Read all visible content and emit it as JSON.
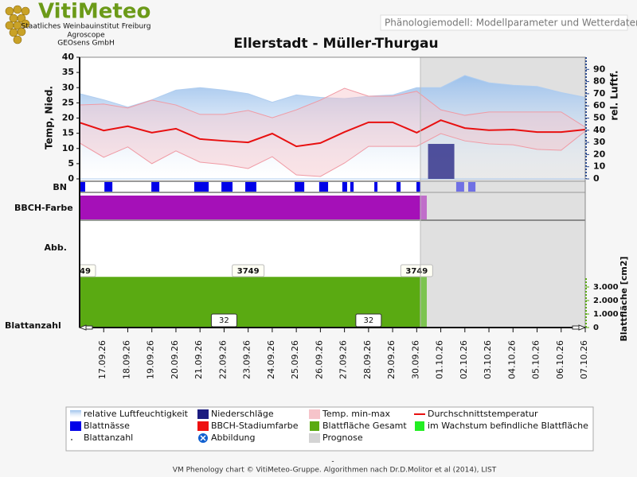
{
  "header": {
    "logo": "VitiMeteo",
    "org_lines": [
      "Staatliches Weinbauinstitut Freiburg",
      "Agroscope",
      "GEOsens GmbH"
    ],
    "model_title": "Phänologiemodell: Modellparameter und Wetterdaten"
  },
  "chart_data": {
    "type": "phenology",
    "title": "Ellerstadt - Müller-Thurgau",
    "categories": [
      null,
      "17.09.26",
      "18.09.26",
      "19.09.26",
      "20.09.26",
      "21.09.26",
      "22.09.26",
      "23.09.26",
      "24.09.26",
      "25.09.26",
      "26.09.26",
      "27.09.26",
      "28.09.26",
      "29.09.26",
      "30.09.26",
      "01.10.26",
      "02.10.26",
      "03.10.26",
      "04.10.26",
      "05.10.26",
      "06.10.26",
      "07.10.26"
    ],
    "ylabel": "Temp, Nied.",
    "y2label": "rel. Luftf.",
    "y3label": "Blattfläche [cm2]",
    "ylim": [
      0,
      40
    ],
    "yticks": [
      0,
      5,
      10,
      15,
      20,
      25,
      30,
      35,
      40
    ],
    "y2lim": [
      0,
      100
    ],
    "y2ticks": [
      0,
      10,
      20,
      30,
      40,
      50,
      60,
      70,
      80,
      90
    ],
    "y3lim": [
      0,
      4000
    ],
    "y3ticks": [
      0,
      {
        "value": 1000,
        "label": "1.000"
      },
      {
        "value": 2000,
        "label": "2.000"
      },
      {
        "value": 3000,
        "label": "3.000"
      }
    ],
    "row_labels": {
      "bn": "BN",
      "bbch": "BBCH-Farbe",
      "abb": "Abb.",
      "count": "Blattanzahl"
    },
    "series": [
      {
        "name": "relative Luftfeuchtigkeit",
        "color": "#8fb8e8",
        "axis": "y2",
        "values": [
          70,
          65,
          59,
          65,
          73,
          75,
          73,
          70,
          63,
          69,
          67,
          66,
          68,
          69,
          75,
          75,
          85,
          79,
          77,
          76,
          71,
          67
        ]
      },
      {
        "name": "Niederschläge",
        "color": "#1c1c80",
        "values": [
          0,
          0,
          0,
          0,
          0,
          0,
          0,
          0,
          0,
          0,
          0,
          0,
          0,
          0,
          0,
          11.5,
          0,
          0,
          0,
          0,
          0,
          0
        ]
      },
      {
        "name": "Temp. min-max",
        "color": "#f6c4ca",
        "high": [
          24.3,
          24.6,
          23.3,
          25.9,
          24.3,
          21.2,
          21.2,
          22.5,
          20.1,
          22.7,
          25.9,
          29.8,
          27.2,
          27.2,
          28.8,
          22.7,
          20.9,
          22,
          22,
          22,
          22,
          17
        ],
        "low": [
          11.8,
          7.1,
          10.5,
          5,
          9.2,
          5.5,
          4.7,
          3.4,
          7.3,
          1.3,
          0.8,
          5.2,
          10.7,
          10.7,
          10.7,
          14.9,
          12.5,
          11.5,
          11.2,
          9.7,
          9.4,
          15.7
        ]
      },
      {
        "name": "Durchschnittstemperatur",
        "color": "#e81010",
        "values": [
          18.5,
          15.9,
          17.3,
          15.2,
          16.5,
          13.1,
          12.5,
          12,
          14.9,
          10.7,
          11.8,
          15.4,
          18.6,
          18.6,
          15.2,
          19.3,
          16.7,
          16,
          16.2,
          15.4,
          15.4,
          16.2
        ]
      },
      {
        "name": "Blattnässe",
        "color": "#0000e8",
        "periods": [
          [
            0.03,
            0.23
          ],
          [
            1.03,
            1.36
          ],
          [
            2.98,
            3.31
          ],
          [
            4.76,
            5.36
          ],
          [
            5.89,
            6.35
          ],
          [
            6.88,
            7.34
          ],
          [
            8.93,
            9.33
          ],
          [
            9.95,
            10.32
          ],
          [
            10.91,
            11.11
          ],
          [
            11.24,
            11.38
          ],
          [
            12.24,
            12.37
          ],
          [
            13.16,
            13.33
          ],
          [
            13.99,
            14.15
          ],
          [
            15.64,
            15.97
          ],
          [
            16.14,
            16.44
          ]
        ]
      },
      {
        "name": "BBCH-Stadiumfarbe",
        "color": "#ee1010",
        "stage_color": "#a510b8"
      },
      {
        "name": "Blattfläche Gesamt",
        "color": "#5aaa12",
        "axis": "y3",
        "values": [
          3749,
          3749,
          3749,
          3749,
          3749,
          3749,
          3749,
          3749,
          3749,
          3749,
          3749,
          3749,
          3749,
          3749,
          3749,
          null,
          null,
          null,
          null,
          null,
          null,
          null
        ]
      },
      {
        "name": "im Wachstum befindliche Blattfläche",
        "color": "#22ee22"
      },
      {
        "name": "Blattanzahl",
        "color": "#555555",
        "values": [
          32,
          32,
          32,
          32,
          32,
          32,
          32,
          32,
          32,
          32,
          32,
          32,
          32,
          32,
          32,
          null,
          null,
          null,
          null,
          null,
          null,
          null
        ]
      }
    ],
    "legend_extra": [
      {
        "name": "Abbildung",
        "color": "#1060d0"
      },
      {
        "name": "Prognose",
        "color": "#d4d4d4"
      }
    ]
  },
  "footer": "VM Phenology chart © VitiMeteo-Gruppe. Algorithmen nach Dr.D.Molitor et al (2014), LIST"
}
